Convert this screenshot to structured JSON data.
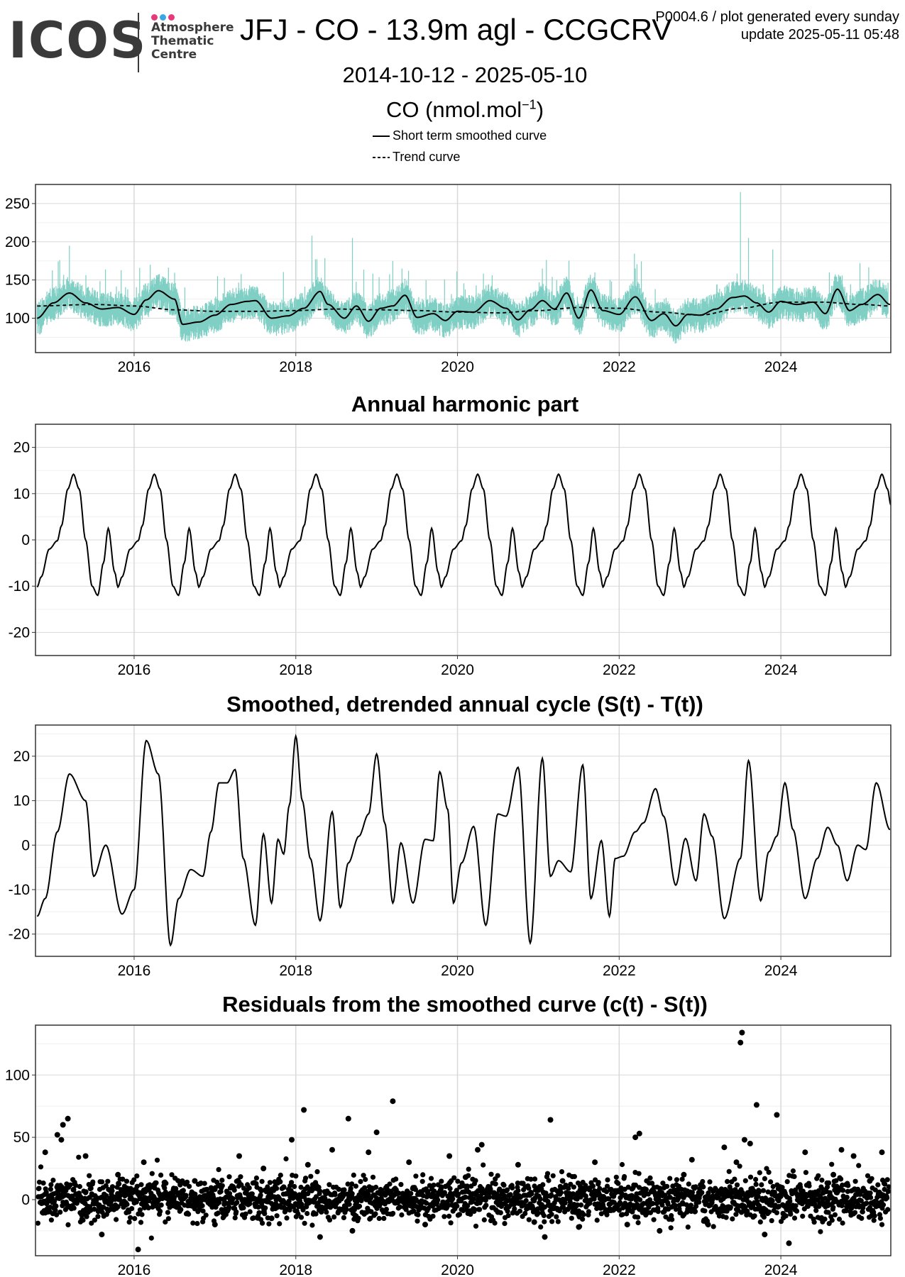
{
  "logo": {
    "wordmark": "ICOS",
    "subtitle": "Atmosphere\nThematic\nCentre",
    "dot_colors": [
      "#e63a7a",
      "#3aa6e6",
      "#e63a7a"
    ]
  },
  "header": {
    "title": "JFJ - CO - 13.9m agl - CCGCRV",
    "date_range": "2014-10-12 - 2025-05-10",
    "unit_label": "CO (nmol.mol",
    "unit_exponent": "−1",
    "unit_close": ")",
    "meta_line1": "P0004.6 / plot generated every sunday",
    "meta_line2": "update  2025-05-11 05:48"
  },
  "legend": {
    "short_term": "Short term smoothed curve",
    "trend": "Trend curve"
  },
  "colors": {
    "observations": "#7fcfc4",
    "curve": "#000000",
    "grid_major": "#d9d9d9",
    "grid_minor": "#f0f0f0",
    "frame": "#333333"
  },
  "chart_data": [
    {
      "type": "line",
      "panel": "observations",
      "title": "",
      "xlabel": "",
      "ylabel": "",
      "xlim": [
        2014.78,
        2025.36
      ],
      "ylim": [
        55,
        275
      ],
      "xticks": [
        2016,
        2018,
        2020,
        2022,
        2024
      ],
      "xtick_labels": [
        "2016",
        "2018",
        "2020",
        "2022",
        "2024"
      ],
      "yticks": [
        100,
        150,
        200,
        250
      ],
      "ytick_labels": [
        "100",
        "150",
        "200",
        "250"
      ],
      "series": [
        {
          "name": "Short term smoothed curve",
          "style": "solid",
          "x": [
            2014.8,
            2015.0,
            2015.2,
            2015.4,
            2015.6,
            2015.8,
            2016.0,
            2016.15,
            2016.3,
            2016.5,
            2016.6,
            2016.8,
            2017.0,
            2017.2,
            2017.4,
            2017.5,
            2017.7,
            2017.9,
            2018.1,
            2018.3,
            2018.4,
            2018.6,
            2018.75,
            2018.9,
            2019.05,
            2019.2,
            2019.35,
            2019.5,
            2019.7,
            2019.85,
            2020.0,
            2020.2,
            2020.4,
            2020.6,
            2020.75,
            2020.9,
            2021.05,
            2021.2,
            2021.35,
            2021.5,
            2021.65,
            2021.8,
            2022.0,
            2022.2,
            2022.4,
            2022.55,
            2022.7,
            2022.85,
            2023.0,
            2023.2,
            2023.4,
            2023.55,
            2023.7,
            2023.85,
            2024.0,
            2024.2,
            2024.4,
            2024.55,
            2024.7,
            2024.85,
            2025.0,
            2025.2,
            2025.35
          ],
          "y": [
            100,
            120,
            133,
            120,
            112,
            114,
            105,
            124,
            136,
            125,
            92,
            95,
            104,
            118,
            122,
            123,
            100,
            103,
            113,
            135,
            118,
            100,
            116,
            96,
            113,
            116,
            130,
            101,
            106,
            97,
            109,
            108,
            123,
            113,
            98,
            111,
            123,
            112,
            133,
            100,
            137,
            110,
            105,
            128,
            97,
            106,
            90,
            105,
            104,
            112,
            127,
            129,
            120,
            108,
            122,
            118,
            121,
            106,
            138,
            110,
            118,
            131,
            118
          ]
        },
        {
          "name": "Trend curve",
          "style": "dashed",
          "x": [
            2014.8,
            2015.5,
            2016.0,
            2016.5,
            2017.0,
            2017.5,
            2018.0,
            2018.5,
            2019.0,
            2019.5,
            2020.0,
            2020.5,
            2021.0,
            2021.5,
            2022.0,
            2022.5,
            2023.0,
            2023.5,
            2024.0,
            2024.5,
            2025.0,
            2025.35
          ],
          "y": [
            116,
            118,
            116,
            111,
            109,
            109,
            110,
            112,
            111,
            110,
            108,
            107,
            110,
            114,
            113,
            108,
            104,
            113,
            121,
            121,
            118,
            116
          ]
        }
      ]
    },
    {
      "type": "line",
      "panel": "harmonic",
      "title": "Annual harmonic part",
      "xlabel": "",
      "ylabel": "",
      "xlim": [
        2014.78,
        2025.36
      ],
      "ylim": [
        -25,
        25
      ],
      "xticks": [
        2016,
        2018,
        2020,
        2022,
        2024
      ],
      "xtick_labels": [
        "2016",
        "2018",
        "2020",
        "2022",
        "2024"
      ],
      "yticks": [
        -20,
        -10,
        0,
        10,
        20
      ],
      "ytick_labels": [
        "-20",
        "-10",
        "0",
        "10",
        "20"
      ],
      "series": [
        {
          "name": "",
          "style": "solid",
          "x": [
            2014.8,
            2014.85,
            2014.95,
            2015.05,
            2015.1,
            2015.18,
            2015.25,
            2015.32,
            2015.4,
            2015.48,
            2015.55,
            2015.62,
            2015.68,
            2015.76,
            2015.8
          ],
          "y": [
            -10.2,
            -8,
            -2,
            -0.2,
            3,
            11,
            14.2,
            11,
            0,
            -10,
            -12,
            -5,
            2.5,
            -7,
            -10.2
          ],
          "period": 1.0,
          "x_end": 2025.36,
          "y_end": 7.5
        }
      ]
    },
    {
      "type": "line",
      "panel": "detrended",
      "title": "Smoothed, detrended annual cycle (S(t) - T(t))",
      "xlabel": "",
      "ylabel": "",
      "xlim": [
        2014.78,
        2025.36
      ],
      "ylim": [
        -25,
        27
      ],
      "xticks": [
        2016,
        2018,
        2020,
        2022,
        2024
      ],
      "xtick_labels": [
        "2016",
        "2018",
        "2020",
        "2022",
        "2024"
      ],
      "yticks": [
        -20,
        -10,
        0,
        10,
        20
      ],
      "ytick_labels": [
        "-20",
        "-10",
        "0",
        "10",
        "20"
      ],
      "series": [
        {
          "name": "",
          "style": "solid",
          "x": [
            2014.8,
            2014.9,
            2015.05,
            2015.2,
            2015.4,
            2015.5,
            2015.65,
            2015.85,
            2016.0,
            2016.15,
            2016.3,
            2016.45,
            2016.55,
            2016.7,
            2016.85,
            2016.95,
            2017.05,
            2017.15,
            2017.25,
            2017.35,
            2017.5,
            2017.6,
            2017.7,
            2017.78,
            2017.85,
            2017.92,
            2018.0,
            2018.08,
            2018.18,
            2018.3,
            2018.45,
            2018.55,
            2018.65,
            2018.78,
            2018.9,
            2019.0,
            2019.1,
            2019.2,
            2019.3,
            2019.45,
            2019.6,
            2019.7,
            2019.78,
            2019.88,
            2019.95,
            2020.05,
            2020.2,
            2020.35,
            2020.5,
            2020.6,
            2020.75,
            2020.9,
            2021.05,
            2021.15,
            2021.25,
            2021.4,
            2021.55,
            2021.65,
            2021.78,
            2021.88,
            2021.95,
            2022.05,
            2022.2,
            2022.3,
            2022.45,
            2022.55,
            2022.7,
            2022.82,
            2022.95,
            2023.05,
            2023.15,
            2023.3,
            2023.5,
            2023.6,
            2023.75,
            2023.85,
            2023.95,
            2024.05,
            2024.15,
            2024.3,
            2024.45,
            2024.58,
            2024.7,
            2024.82,
            2024.95,
            2025.05,
            2025.18,
            2025.35
          ],
          "y": [
            -16,
            -12,
            3,
            16,
            10,
            -7,
            0,
            -15.5,
            -10,
            23.5,
            16,
            -22.5,
            -12,
            -5.5,
            -7,
            3,
            14,
            14,
            17,
            -3,
            -18,
            2.5,
            -13,
            1.3,
            -2,
            9,
            24.5,
            10,
            -3,
            -17,
            7.5,
            -14,
            -4,
            2,
            7,
            20.5,
            5,
            -13,
            0.5,
            -13,
            1.3,
            1,
            16.5,
            8,
            -13,
            -4,
            4.2,
            -18,
            7,
            6.5,
            17.5,
            -22,
            19.5,
            -7,
            -3.5,
            -6,
            18,
            -12,
            1,
            -16,
            -3,
            -2.5,
            3,
            5,
            12.7,
            6.5,
            -9,
            1.5,
            -8,
            7,
            2,
            -16.5,
            -3,
            19,
            -12.5,
            -1.5,
            2,
            14,
            3.5,
            -12,
            -3,
            4,
            0,
            -8,
            0,
            -1,
            14,
            3.5
          ]
        }
      ]
    },
    {
      "type": "scatter",
      "panel": "residuals",
      "title": "Residuals from the smoothed curve (c(t) - S(t))",
      "xlabel": "",
      "ylabel": "",
      "xlim": [
        2014.78,
        2025.36
      ],
      "ylim": [
        -45,
        140
      ],
      "xticks": [
        2016,
        2018,
        2020,
        2022,
        2024
      ],
      "xtick_labels": [
        "2016",
        "2018",
        "2020",
        "2022",
        "2024"
      ],
      "yticks": [
        0,
        50,
        100
      ],
      "ytick_labels": [
        "0",
        "50",
        "100"
      ],
      "series": [
        {
          "name": "",
          "x": [
            2014.9,
            2015.05,
            2015.1,
            2015.12,
            2015.18,
            2015.25,
            2015.4,
            2015.6,
            2015.8,
            2016.05,
            2016.12,
            2016.25,
            2016.5,
            2016.75,
            2017.0,
            2017.3,
            2017.6,
            2017.7,
            2017.85,
            2017.95,
            2018.1,
            2018.15,
            2018.3,
            2018.45,
            2018.65,
            2018.7,
            2018.9,
            2019.0,
            2019.2,
            2019.4,
            2019.6,
            2019.8,
            2019.9,
            2020.1,
            2020.25,
            2020.3,
            2020.5,
            2020.75,
            2020.95,
            2021.08,
            2021.15,
            2021.3,
            2021.5,
            2021.7,
            2021.9,
            2022.1,
            2022.2,
            2022.25,
            2022.5,
            2022.8,
            2022.9,
            2023.1,
            2023.3,
            2023.45,
            2023.5,
            2023.52,
            2023.55,
            2023.62,
            2023.7,
            2023.8,
            2023.95,
            2024.1,
            2024.3,
            2024.5,
            2024.65,
            2024.75,
            2024.9,
            2025.1,
            2025.25
          ],
          "y": [
            38,
            52,
            48,
            60,
            65,
            8,
            35,
            -28,
            20,
            -40,
            30,
            12,
            -5,
            15,
            -20,
            35,
            25,
            -15,
            10,
            48,
            72,
            28,
            -30,
            40,
            65,
            -25,
            38,
            54,
            79,
            30,
            -20,
            10,
            35,
            18,
            40,
            44,
            -10,
            28,
            -18,
            -30,
            64,
            15,
            -22,
            30,
            8,
            -20,
            50,
            53,
            -25,
            20,
            32,
            -20,
            42,
            30,
            126,
            134,
            48,
            45,
            76,
            -28,
            68,
            -35,
            38,
            -15,
            20,
            40,
            35,
            15,
            38
          ]
        }
      ]
    }
  ]
}
